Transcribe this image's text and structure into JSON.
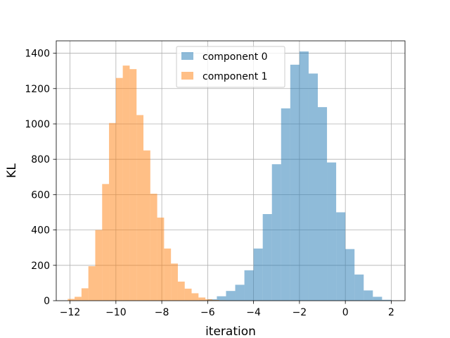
{
  "chart_data": {
    "type": "bar",
    "title": "",
    "xlabel": "iteration",
    "ylabel": "KL",
    "xlim": [
      -12.6,
      2.6
    ],
    "ylim": [
      0,
      1470
    ],
    "xticks": [
      -12,
      -10,
      -8,
      -6,
      -4,
      -2,
      0,
      2
    ],
    "yticks": [
      0,
      200,
      400,
      600,
      800,
      1000,
      1200,
      1400
    ],
    "grid": true,
    "legend_placement": "upper center",
    "series": [
      {
        "name": "component 0",
        "color": "#1f77b4",
        "alpha": 0.5,
        "bin_edges": [
          -6.4,
          -6.0,
          -5.6,
          -5.2,
          -4.8,
          -4.4,
          -4.0,
          -3.6,
          -3.2,
          -2.8,
          -2.4,
          -2.0,
          -1.6,
          -1.2,
          -0.8,
          -0.4,
          0.0,
          0.4,
          0.8,
          1.2,
          1.6,
          2.0
        ],
        "counts": [
          2,
          8,
          25,
          55,
          90,
          172,
          295,
          490,
          772,
          1088,
          1335,
          1410,
          1285,
          1095,
          782,
          500,
          292,
          148,
          58,
          22,
          5
        ]
      },
      {
        "name": "component 1",
        "color": "#ff7f0e",
        "alpha": 0.5,
        "bin_edges": [
          -12.1,
          -11.8,
          -11.5,
          -11.2,
          -10.9,
          -10.6,
          -10.3,
          -10.0,
          -9.7,
          -9.4,
          -9.1,
          -8.8,
          -8.5,
          -8.2,
          -7.9,
          -7.6,
          -7.3,
          -7.0,
          -6.7,
          -6.4,
          -6.1,
          -5.8,
          -5.5,
          -5.2
        ],
        "counts": [
          10,
          22,
          70,
          195,
          400,
          660,
          1005,
          1260,
          1330,
          1310,
          1050,
          850,
          605,
          470,
          295,
          210,
          108,
          68,
          42,
          18,
          8,
          4,
          2
        ]
      }
    ]
  }
}
